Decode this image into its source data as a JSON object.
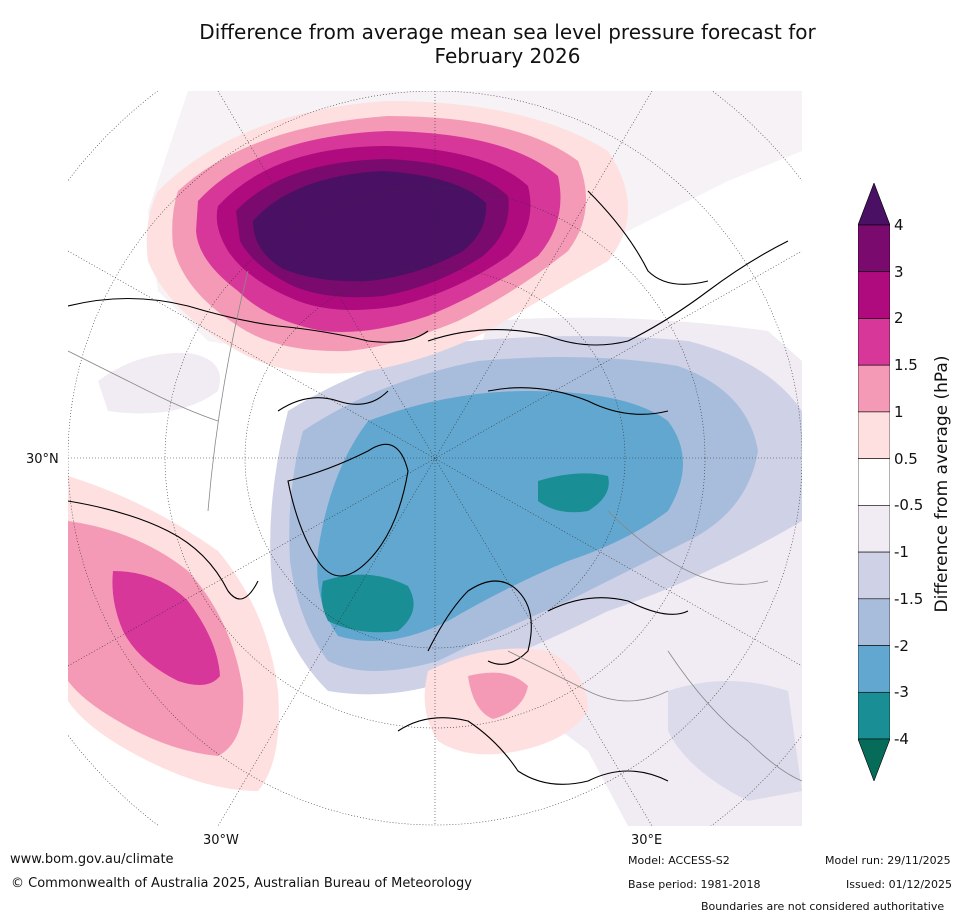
{
  "title_line1": "Difference from average mean sea level pressure forecast for",
  "title_line2": "February 2026",
  "map": {
    "projection": "north-polar",
    "lat_label": "30°N",
    "lon_labels": [
      "30°W",
      "30°E"
    ]
  },
  "colorbar": {
    "title": "Difference from average (hPa)",
    "ticks": [
      "4",
      "3",
      "2",
      "1.5",
      "1",
      "0.5",
      "-0.5",
      "-1",
      "-1.5",
      "-2",
      "-3",
      "-4"
    ],
    "colors": {
      "above_4": "#4a1064",
      "3_to_4": "#7a0a6e",
      "2_to_3": "#b00a7f",
      "1.5_to_2": "#d8379a",
      "1_to_1.5": "#f49ab6",
      "0.5_to_1": "#fde0df",
      "neutral": "#ffffff",
      "-1_to_-0.5": "#f1ecf3",
      "-1.5_to_-1": "#cfd1e6",
      "-2_to_-1.5": "#a8bddc",
      "-3_to_-2": "#62a7cf",
      "-4_to_-3": "#1a8e95",
      "below_-4": "#066b58"
    }
  },
  "footer": {
    "url": "www.bom.gov.au/climate",
    "copyright": "© Commonwealth of Australia 2025, Australian Bureau of Meteorology",
    "model": "Model: ACCESS-S2",
    "base_period": "Base period: 1981-2018",
    "model_run": "Model run: 29/11/2025",
    "issued": "Issued: 01/12/2025",
    "disclaimer": "Boundaries are not considered authoritative"
  }
}
